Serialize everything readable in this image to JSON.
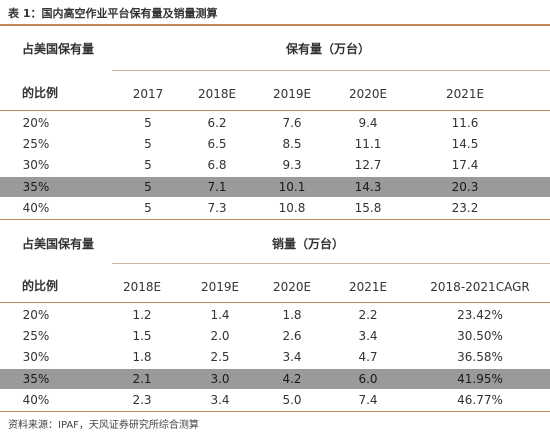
{
  "title": "表 1：国内高空作业平台保有量及销量测算",
  "table1": {
    "row_header_line1": "占美国保有量",
    "row_header_line2": "的比例",
    "group_header": "保有量（万台）",
    "columns": [
      "2017",
      "2018E",
      "2019E",
      "2020E",
      "2021E"
    ],
    "rows": [
      {
        "ratio": "20%",
        "values": [
          "5",
          "6.2",
          "7.6",
          "9.4",
          "11.6"
        ],
        "highlight": false
      },
      {
        "ratio": "25%",
        "values": [
          "5",
          "6.5",
          "8.5",
          "11.1",
          "14.5"
        ],
        "highlight": false
      },
      {
        "ratio": "30%",
        "values": [
          "5",
          "6.8",
          "9.3",
          "12.7",
          "17.4"
        ],
        "highlight": false
      },
      {
        "ratio": "35%",
        "values": [
          "5",
          "7.1",
          "10.1",
          "14.3",
          "20.3"
        ],
        "highlight": true
      },
      {
        "ratio": "40%",
        "values": [
          "5",
          "7.3",
          "10.8",
          "15.8",
          "23.2"
        ],
        "highlight": false
      }
    ]
  },
  "table2": {
    "row_header_line1": "占美国保有量",
    "row_header_line2": "的比例",
    "group_header": "销量（万台）",
    "columns": [
      "2018E",
      "2019E",
      "2020E",
      "2021E",
      "2018-2021CAGR"
    ],
    "rows": [
      {
        "ratio": "20%",
        "values": [
          "1.2",
          "1.4",
          "1.8",
          "2.2",
          "23.42%"
        ],
        "highlight": false
      },
      {
        "ratio": "25%",
        "values": [
          "1.5",
          "2.0",
          "2.6",
          "3.4",
          "30.50%"
        ],
        "highlight": false
      },
      {
        "ratio": "30%",
        "values": [
          "1.8",
          "2.5",
          "3.4",
          "4.7",
          "36.58%"
        ],
        "highlight": false
      },
      {
        "ratio": "35%",
        "values": [
          "2.1",
          "3.0",
          "4.2",
          "6.0",
          "41.95%"
        ],
        "highlight": true
      },
      {
        "ratio": "40%",
        "values": [
          "2.3",
          "3.4",
          "5.0",
          "7.4",
          "46.77%"
        ],
        "highlight": false
      }
    ]
  },
  "source": "资料来源：IPAF，天风证券研究所综合测算",
  "colors": {
    "rule": "#c0885a",
    "highlight_row": "#9a9a9a"
  }
}
